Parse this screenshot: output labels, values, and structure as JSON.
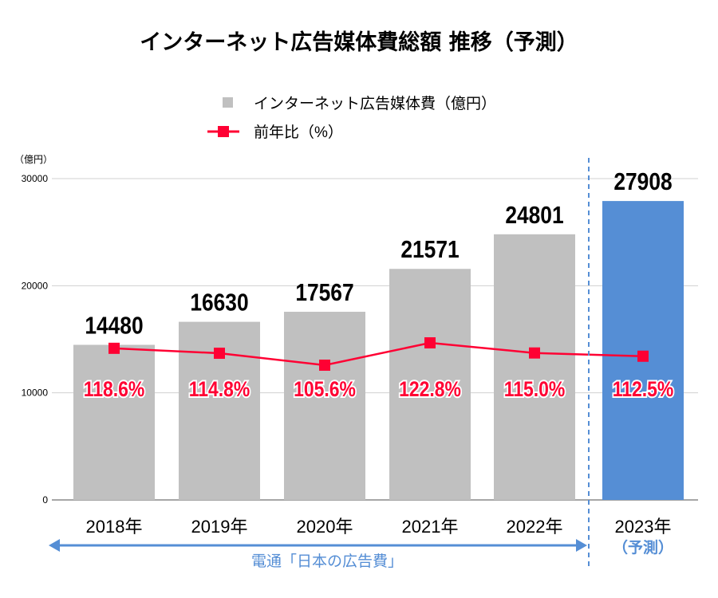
{
  "chart_data": {
    "type": "bar",
    "title": "インターネット広告媒体費総額 推移（予測）",
    "ylabel": "（億円）",
    "ylim": [
      0,
      30000
    ],
    "yticks": [
      "0",
      "10000",
      "20000",
      "30000"
    ],
    "grid": true,
    "legend_position": "top",
    "categories": [
      "2018年",
      "2019年",
      "2020年",
      "2021年",
      "2022年",
      "2023年"
    ],
    "forecast_note": "（予測）",
    "series": [
      {
        "name": "インターネット広告媒体費（億円）",
        "type": "bar",
        "values": [
          14480,
          16630,
          17567,
          21571,
          24801,
          27908
        ],
        "data_labels": [
          "14480",
          "16630",
          "17567",
          "21571",
          "24801",
          "27908"
        ],
        "color": "#c0c0c0",
        "forecast_color": "#558ed5"
      },
      {
        "name": "前年比（%）",
        "type": "line",
        "values": [
          118.6,
          114.8,
          105.6,
          122.8,
          115.0,
          112.5
        ],
        "data_labels": [
          "118.6%",
          "114.8%",
          "105.6%",
          "122.8%",
          "115.0%",
          "112.5%"
        ],
        "color": "#ff0033"
      }
    ],
    "annotation": "電通「日本の広告費」",
    "annotation_color": "#558ed5"
  }
}
